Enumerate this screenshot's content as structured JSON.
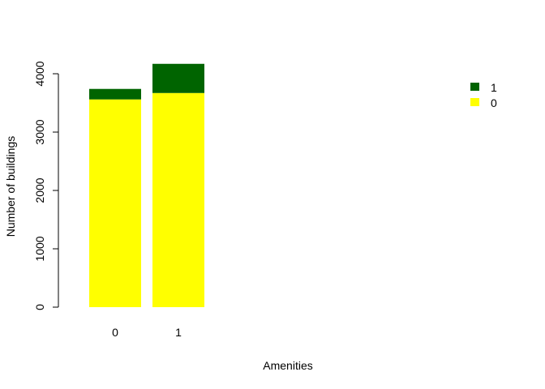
{
  "chart_data": {
    "type": "bar",
    "stacked": true,
    "categories": [
      "0",
      "1"
    ],
    "series": [
      {
        "name": "0",
        "color": "#FFFF00",
        "values": [
          3560,
          3670
        ]
      },
      {
        "name": "1",
        "color": "#006400",
        "values": [
          180,
          500
        ]
      }
    ],
    "xlabel": "Amenities",
    "ylabel": "Number of buildings",
    "yticks": [
      0,
      1000,
      2000,
      3000,
      4000
    ],
    "ylim": [
      0,
      4170
    ],
    "grid": false,
    "legend_position": "top-right",
    "legend_order": [
      "1",
      "0"
    ]
  }
}
